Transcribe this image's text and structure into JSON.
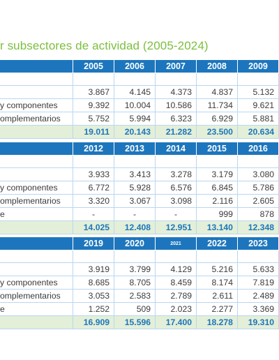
{
  "title": "r subsectores de actividad (2005-2024)",
  "tables": [
    {
      "years": [
        "2005",
        "2006",
        "2007",
        "2008",
        "2009"
      ],
      "rows": [
        {
          "label": "",
          "values": [
            "3.867",
            "4.145",
            "4.373",
            "4.837",
            "5.132"
          ]
        },
        {
          "label": "y componentes",
          "values": [
            "9.392",
            "10.004",
            "10.586",
            "11.734",
            "9.621"
          ]
        },
        {
          "label": "omplementarios",
          "values": [
            "5.752",
            "5.994",
            "6.323",
            "6.929",
            "5.881"
          ]
        }
      ],
      "totals": [
        "19.011",
        "20.143",
        "21.282",
        "23.500",
        "20.634"
      ]
    },
    {
      "years": [
        "2012",
        "2013",
        "2014",
        "2015",
        "2016"
      ],
      "rows": [
        {
          "label": "",
          "values": [
            "3.933",
            "3.413",
            "3.278",
            "3.179",
            "3.080"
          ]
        },
        {
          "label": "y componentes",
          "values": [
            "6.772",
            "5.928",
            "6.576",
            "6.845",
            "5.786"
          ]
        },
        {
          "label": "omplementarios",
          "values": [
            "3.320",
            "3.067",
            "3.098",
            "2.116",
            "2.605"
          ]
        },
        {
          "label": "e",
          "values": [
            "-",
            "-",
            "-",
            "999",
            "878"
          ]
        }
      ],
      "totals": [
        "14.025",
        "12.408",
        "12.951",
        "13.140",
        "12.348"
      ]
    },
    {
      "years": [
        "2019",
        "2020",
        "2021",
        "2022",
        "2023"
      ],
      "rows": [
        {
          "label": "",
          "values": [
            "3.919",
            "3.799",
            "4.129",
            "5.216",
            "5.633"
          ]
        },
        {
          "label": "y componentes",
          "values": [
            "8.685",
            "8.705",
            "8.459",
            "8.174",
            "7.819"
          ]
        },
        {
          "label": "omplementarios",
          "values": [
            "3.053",
            "2.583",
            "2.789",
            "2.611",
            "2.489"
          ]
        },
        {
          "label": "e",
          "values": [
            "1.252",
            "509",
            "2.023",
            "2.277",
            "3.369"
          ]
        }
      ],
      "totals": [
        "16.909",
        "15.596",
        "17.400",
        "18.278",
        "19.310"
      ]
    }
  ]
}
